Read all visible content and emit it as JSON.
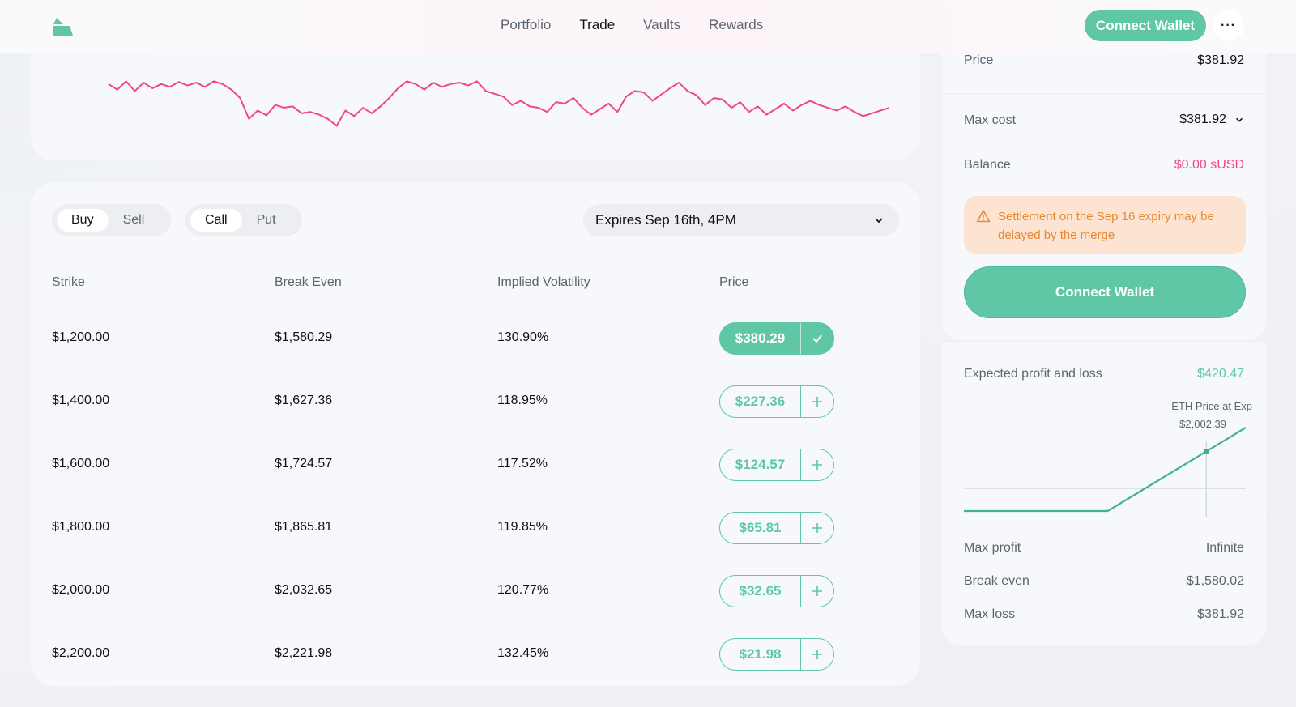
{
  "nav": {
    "items": [
      {
        "label": "Portfolio",
        "active": false
      },
      {
        "label": "Trade",
        "active": true
      },
      {
        "label": "Vaults",
        "active": false
      },
      {
        "label": "Rewards",
        "active": false
      }
    ],
    "connect_label": "Connect Wallet",
    "more_label": "···"
  },
  "colors": {
    "accent": "#5fc7a6",
    "chart_line": "#f2468a",
    "warning": "#e8892d",
    "warning_bg": "#fde3d1",
    "negative": "#f2468a"
  },
  "chart_data": {
    "type": "line",
    "title": "",
    "color": "#f2468a",
    "x": [
      0,
      1,
      2,
      3,
      4,
      5,
      6,
      7,
      8,
      9,
      10,
      11,
      12,
      13,
      14,
      15,
      16,
      17,
      18,
      19,
      20,
      21,
      22,
      23,
      24,
      25,
      26,
      27,
      28,
      29,
      30,
      31,
      32,
      33,
      34,
      35,
      36,
      37,
      38,
      39,
      40,
      41,
      42,
      43,
      44,
      45,
      46,
      47,
      48,
      49,
      50,
      51,
      52,
      53,
      54,
      55,
      56,
      57,
      58,
      59,
      60,
      61,
      62,
      63,
      64,
      65,
      66,
      67,
      68,
      69,
      70,
      71,
      72,
      73,
      74,
      75,
      76,
      77,
      78,
      79,
      80,
      81,
      82,
      83,
      84,
      85,
      86,
      87,
      88,
      89
    ],
    "values": [
      70,
      62,
      74,
      60,
      72,
      64,
      70,
      66,
      73,
      68,
      72,
      66,
      74,
      70,
      62,
      50,
      20,
      32,
      25,
      40,
      36,
      38,
      28,
      30,
      26,
      20,
      10,
      32,
      24,
      36,
      28,
      38,
      50,
      64,
      74,
      70,
      62,
      72,
      66,
      70,
      72,
      68,
      74,
      60,
      56,
      52,
      40,
      46,
      38,
      36,
      30,
      44,
      42,
      50,
      36,
      26,
      34,
      42,
      30,
      52,
      60,
      58,
      46,
      55,
      64,
      72,
      60,
      54,
      40,
      50,
      48,
      36,
      44,
      30,
      38,
      26,
      34,
      42,
      32,
      40,
      46,
      40,
      36,
      32,
      38,
      30,
      24,
      28,
      32,
      36
    ],
    "ylim": [
      0,
      100
    ],
    "grid": false
  },
  "trade": {
    "side_tabs": [
      {
        "label": "Buy",
        "active": true
      },
      {
        "label": "Sell",
        "active": false
      }
    ],
    "type_tabs": [
      {
        "label": "Call",
        "active": true
      },
      {
        "label": "Put",
        "active": false
      }
    ],
    "expiry": "Expires Sep 16th, 4PM",
    "columns": [
      "Strike",
      "Break Even",
      "Implied Volatility",
      "Price"
    ],
    "rows": [
      {
        "strike": "$1,200.00",
        "break_even": "$1,580.29",
        "iv": "130.90%",
        "price": "$380.29",
        "selected": true
      },
      {
        "strike": "$1,400.00",
        "break_even": "$1,627.36",
        "iv": "118.95%",
        "price": "$227.36",
        "selected": false
      },
      {
        "strike": "$1,600.00",
        "break_even": "$1,724.57",
        "iv": "117.52%",
        "price": "$124.57",
        "selected": false
      },
      {
        "strike": "$1,800.00",
        "break_even": "$1,865.81",
        "iv": "119.85%",
        "price": "$65.81",
        "selected": false
      },
      {
        "strike": "$2,000.00",
        "break_even": "$2,032.65",
        "iv": "120.77%",
        "price": "$32.65",
        "selected": false
      },
      {
        "strike": "$2,200.00",
        "break_even": "$2,221.98",
        "iv": "132.45%",
        "price": "$21.98",
        "selected": false
      }
    ]
  },
  "order": {
    "price_label": "Price",
    "price_value": "$381.92",
    "max_cost_label": "Max cost",
    "max_cost_value": "$381.92",
    "balance_label": "Balance",
    "balance_value": "$0.00 sUSD",
    "warning_text": "Settlement on the Sep 16 expiry may be delayed by the merge",
    "connect_label": "Connect Wallet"
  },
  "pnl": {
    "label": "Expected profit and loss",
    "value": "$420.47",
    "eth_label": "ETH Price at Exp",
    "eth_value": "$2,002.39",
    "chart": {
      "type": "line",
      "breakeven_fraction_x": 0.51,
      "marker_fraction_x": 0.86
    },
    "max_profit_label": "Max profit",
    "max_profit_value": "Infinite",
    "break_even_label": "Break even",
    "break_even_value": "$1,580.02",
    "max_loss_label": "Max loss",
    "max_loss_value": "$381.92"
  }
}
